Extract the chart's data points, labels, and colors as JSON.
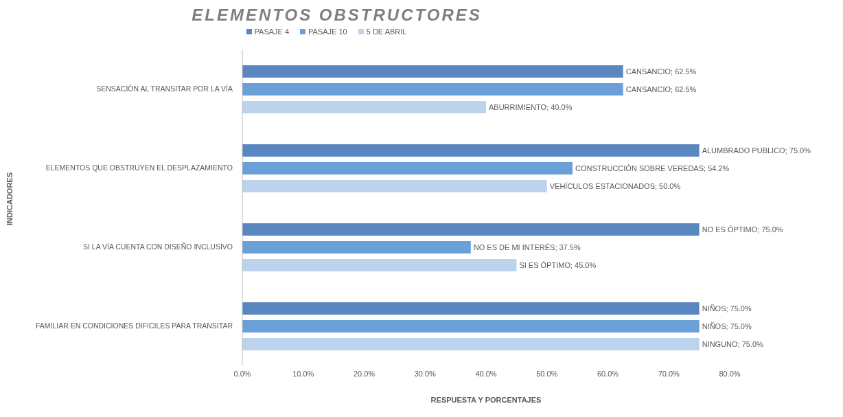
{
  "chart_data": {
    "type": "bar",
    "orientation": "horizontal",
    "title": "ELEMENTOS OBSTRUCTORES",
    "xlabel": "RESPUESTA Y PORCENTAJES",
    "ylabel": "INDICADORES",
    "categories": [
      "SENSACIÓN AL TRANSITAR POR LA VÍA",
      "ELEMENTOS QUE OBSTRUYEN EL DESPLAZAMIENTO",
      "SI LA VÍA CUENTA CON DISEÑO INCLUSIVO",
      "FAMILIAR EN CONDICIONES DIFICILES PARA TRANSITAR"
    ],
    "series": [
      {
        "name": "PASAJE 4",
        "color": "#5b87c0",
        "values": [
          62.5,
          75.0,
          75.0,
          75.0
        ],
        "value_labels": [
          "CANSANCIO; 62.5%",
          "ALUMBRADO PUBLICO; 75.0%",
          "NO ES ÓPTIMO; 75.0%",
          "NIÑOS; 75.0%"
        ]
      },
      {
        "name": "PASAJE 10",
        "color": "#6a9fd8",
        "values": [
          62.5,
          54.2,
          37.5,
          75.0
        ],
        "value_labels": [
          "CANSANCIO; 62.5%",
          "CONSTRUCCIÓN SOBRE VEREDAS; 54.2%",
          "NO ES DE MI INTERÉS; 37.5%",
          "NIÑOS; 75.0%"
        ]
      },
      {
        "name": "5 DE ABRIL",
        "color": "#bcd3ee",
        "values": [
          40.0,
          50.0,
          45.0,
          75.0
        ],
        "value_labels": [
          "ABURRIMIENTO; 40.0%",
          "VEHÍCULOS ESTACIONADOS; 50.0%",
          "SI ES ÓPTIMO; 45.0%",
          "NINGUNO; 75.0%"
        ]
      }
    ],
    "xlim": [
      0,
      80
    ],
    "xticks": [
      {
        "value": 0,
        "label": "0.0%"
      },
      {
        "value": 10,
        "label": "10.0%"
      },
      {
        "value": 20,
        "label": "20.0%"
      },
      {
        "value": 30,
        "label": "30.0%"
      },
      {
        "value": 40,
        "label": "40.0%"
      },
      {
        "value": 50,
        "label": "50.0%"
      },
      {
        "value": 60,
        "label": "60.0%"
      },
      {
        "value": 70,
        "label": "70.0%"
      },
      {
        "value": 80,
        "label": "80.0%"
      }
    ],
    "legend": "top",
    "grid": false
  }
}
